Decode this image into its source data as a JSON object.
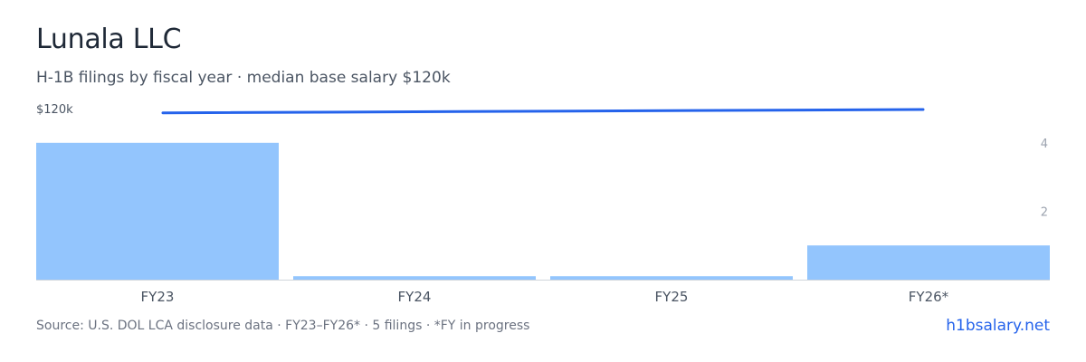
{
  "header": {
    "title": "Lunala LLC",
    "subtitle": "H-1B filings by fiscal year · median base salary $120k"
  },
  "footer": {
    "source": "Source: U.S. DOL LCA disclosure data · FY23–FY26* · 5 filings · *FY in progress",
    "site": "h1bsalary.net"
  },
  "colors": {
    "bar": "#93c5fd",
    "line": "#2563eb",
    "axis_text": "#9ca3af",
    "category_text": "#4b5563",
    "baseline": "#d1d5db"
  },
  "chart_data": {
    "type": "bar",
    "categories": [
      "FY23",
      "FY24",
      "FY25",
      "FY26*"
    ],
    "series": [
      {
        "values": [
          4,
          0.1,
          0.1,
          1
        ],
        "axis": "right"
      },
      {
        "type": "line",
        "values": [
          117000,
          null,
          null,
          120000
        ],
        "axis": "left"
      }
    ],
    "right_axis": {
      "ticks": [
        "4",
        "2"
      ],
      "ylim": [
        0,
        5
      ]
    },
    "left_axis": {
      "ticks": [
        "$120k"
      ]
    },
    "grid": false
  }
}
